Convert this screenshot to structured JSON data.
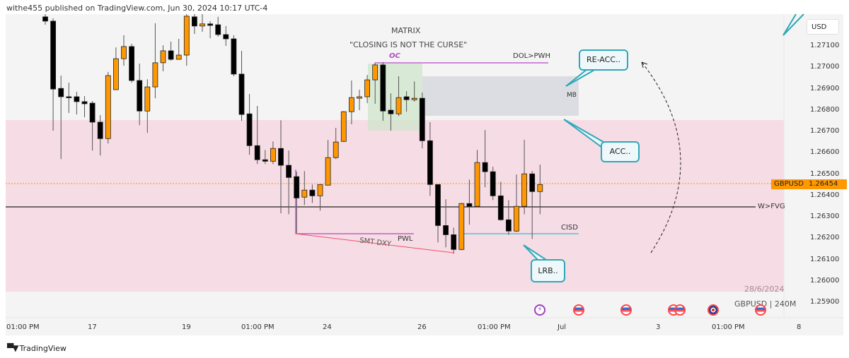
{
  "header": {
    "published": "withe455 published on TradingView.com, Jun 30, 2024 10:17 UTC-4"
  },
  "chart_data": {
    "type": "candlestick",
    "symbol": "GBPUSD",
    "interval": "240M",
    "currency": "USD",
    "last_price": "1.26454",
    "price_ticks": [
      "1.27100",
      "1.27000",
      "1.26900",
      "1.26800",
      "1.26700",
      "1.26600",
      "1.26500",
      "1.26400",
      "1.26300",
      "1.26200",
      "1.26100",
      "1.26000",
      "1.25900"
    ],
    "time_ticks": [
      "01:00 PM",
      "17",
      "19",
      "01:00 PM",
      "24",
      "26",
      "01:00 PM",
      "Jul",
      "3",
      "01:00 PM",
      "8"
    ],
    "colors": {
      "up": "#ff9800",
      "down": "#000000",
      "zone": "#f6dce4",
      "mb": "#dcdde3",
      "oc_box": "#d5e8d4",
      "accent": "#2fa8b8"
    },
    "candles_ohlc": [
      [
        1.27236,
        1.27249,
        1.27199,
        1.27216
      ],
      [
        1.27216,
        1.27229,
        1.26703,
        1.26898
      ],
      [
        1.26901,
        1.26961,
        1.2657,
        1.26862
      ],
      [
        1.26862,
        1.26928,
        1.26786,
        1.2686
      ],
      [
        1.26862,
        1.26885,
        1.26779,
        1.26839
      ],
      [
        1.26839,
        1.26865,
        1.26766,
        1.26829
      ],
      [
        1.26832,
        1.26842,
        1.2661,
        1.26743
      ],
      [
        1.26743,
        1.26776,
        1.26587,
        1.26666
      ],
      [
        1.26666,
        1.26978,
        1.26643,
        1.26961
      ],
      [
        1.26895,
        1.27093,
        1.26954,
        1.2704
      ],
      [
        1.2704,
        1.2715,
        1.27007,
        1.27097
      ],
      [
        1.27097,
        1.2711,
        1.26928,
        1.26938
      ],
      [
        1.26938,
        1.27017,
        1.26729,
        1.26795
      ],
      [
        1.26795,
        1.26944,
        1.26693,
        1.26908
      ],
      [
        1.26908,
        1.27206,
        1.26855,
        1.27021
      ],
      [
        1.27021,
        1.27103,
        1.26981,
        1.27077
      ],
      [
        1.27077,
        1.2712,
        1.27031,
        1.27037
      ],
      [
        1.27037,
        1.27133,
        1.27037,
        1.27057
      ],
      [
        1.27057,
        1.27249,
        1.27007,
        1.27239
      ],
      [
        1.27236,
        1.27249,
        1.27156,
        1.27193
      ],
      [
        1.27193,
        1.27249,
        1.27166,
        1.27203
      ],
      [
        1.27203,
        1.27216,
        1.27136,
        1.27196
      ],
      [
        1.27199,
        1.27236,
        1.27143,
        1.27153
      ],
      [
        1.27153,
        1.27193,
        1.271,
        1.27133
      ],
      [
        1.27133,
        1.2715,
        1.26958,
        1.26968
      ],
      [
        1.26968,
        1.27077,
        1.26749,
        1.26779
      ],
      [
        1.26782,
        1.26875,
        1.2659,
        1.26633
      ],
      [
        1.26633,
        1.26819,
        1.26547,
        1.26567
      ],
      [
        1.26567,
        1.26613,
        1.26547,
        1.2656
      ],
      [
        1.2656,
        1.26653,
        1.26547,
        1.2662
      ],
      [
        1.2662,
        1.26752,
        1.26316,
        1.26541
      ],
      [
        1.26541,
        1.2661,
        1.26312,
        1.26484
      ],
      [
        1.26488,
        1.26511,
        1.26223,
        1.26388
      ],
      [
        1.26392,
        1.26514,
        1.26355,
        1.26425
      ],
      [
        1.26425,
        1.26451,
        1.26365,
        1.26398
      ],
      [
        1.26398,
        1.26451,
        1.26329,
        1.26451
      ],
      [
        1.26448,
        1.2666,
        1.26448,
        1.26577
      ],
      [
        1.26577,
        1.26716,
        1.2657,
        1.2665
      ],
      [
        1.26653,
        1.26795,
        1.2665,
        1.26792
      ],
      [
        1.26792,
        1.26938,
        1.26733,
        1.26858
      ],
      [
        1.26855,
        1.26895,
        1.26799,
        1.26862
      ],
      [
        1.26862,
        1.26964,
        1.26832,
        1.26941
      ],
      [
        1.26941,
        1.27017,
        1.26829,
        1.27011
      ],
      [
        1.27011,
        1.27024,
        1.26749,
        1.26795
      ],
      [
        1.26799,
        1.26878,
        1.26703,
        1.26782
      ],
      [
        1.26782,
        1.26958,
        1.26772,
        1.26858
      ],
      [
        1.26862,
        1.26888,
        1.26792,
        1.26848
      ],
      [
        1.26848,
        1.26934,
        1.26839,
        1.26855
      ],
      [
        1.26855,
        1.26882,
        1.2662,
        1.26656
      ],
      [
        1.26656,
        1.26743,
        1.26398,
        1.26451
      ],
      [
        1.26451,
        1.26451,
        1.2618,
        1.26259
      ],
      [
        1.26259,
        1.26382,
        1.26157,
        1.26216
      ],
      [
        1.26216,
        1.26249,
        1.26127,
        1.26147
      ],
      [
        1.26147,
        1.26365,
        1.26143,
        1.26362
      ],
      [
        1.26362,
        1.26474,
        1.26263,
        1.26349
      ],
      [
        1.26349,
        1.26613,
        1.26345,
        1.26554
      ],
      [
        1.26554,
        1.26706,
        1.26438,
        1.26511
      ],
      [
        1.26511,
        1.26534,
        1.26378,
        1.26398
      ],
      [
        1.26398,
        1.26464,
        1.26282,
        1.26286
      ],
      [
        1.26286,
        1.26378,
        1.26216,
        1.26233
      ],
      [
        1.26233,
        1.26498,
        1.26229,
        1.26349
      ],
      [
        1.26349,
        1.2666,
        1.26312,
        1.26501
      ],
      [
        1.26501,
        1.26514,
        1.26196,
        1.26418
      ],
      [
        1.26418,
        1.26544,
        1.26312,
        1.26451
      ]
    ]
  },
  "annotations": {
    "title": "MATRIX",
    "subtitle": "\"CLOSING IS NOT THE CURSE\"",
    "oc": "OC",
    "dol": "DOL>PWH",
    "mb": "MB",
    "wfvg": "W>FVG",
    "cisd": "CISD",
    "pwl": "PWL",
    "smt": "SMT DXY",
    "re_acc": "RE-ACC..",
    "acc": "ACC..",
    "lrb": "LRB..",
    "date": "28/6/2024",
    "watermark": "GBPUSD | 240M"
  },
  "events": [
    "lightning-icon",
    "us-flag-icon",
    "us-flag-icon",
    "us-flag-icon",
    "us-flag-icon",
    "uk-flag-icon",
    "us-flag-icon"
  ],
  "footer": {
    "brand": "TradingView"
  }
}
